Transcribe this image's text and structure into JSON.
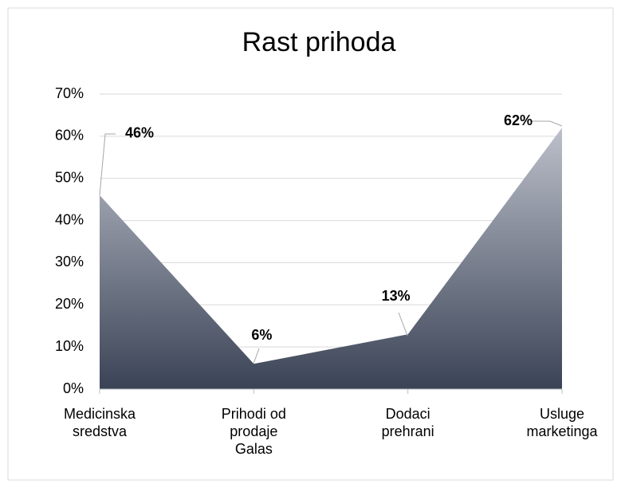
{
  "chart_data": {
    "type": "area",
    "title": "Rast prihoda",
    "categories": [
      "Medicinska sredstva",
      "Prihodi od prodaje Galas",
      "Dodaci prehrani",
      "Usluge marketinga"
    ],
    "values": [
      46,
      6,
      13,
      62
    ],
    "value_labels": [
      "46%",
      "6%",
      "13%",
      "62%"
    ],
    "color": "#3a4356",
    "ylim": [
      0,
      70
    ],
    "yticks": [
      {
        "value": 0,
        "label": "0%"
      },
      {
        "value": 10,
        "label": "10%"
      },
      {
        "value": 20,
        "label": "20%"
      },
      {
        "value": 30,
        "label": "30%"
      },
      {
        "value": 40,
        "label": "40%"
      },
      {
        "value": 50,
        "label": "50%"
      },
      {
        "value": 60,
        "label": "60%"
      },
      {
        "value": 70,
        "label": "70%"
      }
    ],
    "grid": true
  }
}
